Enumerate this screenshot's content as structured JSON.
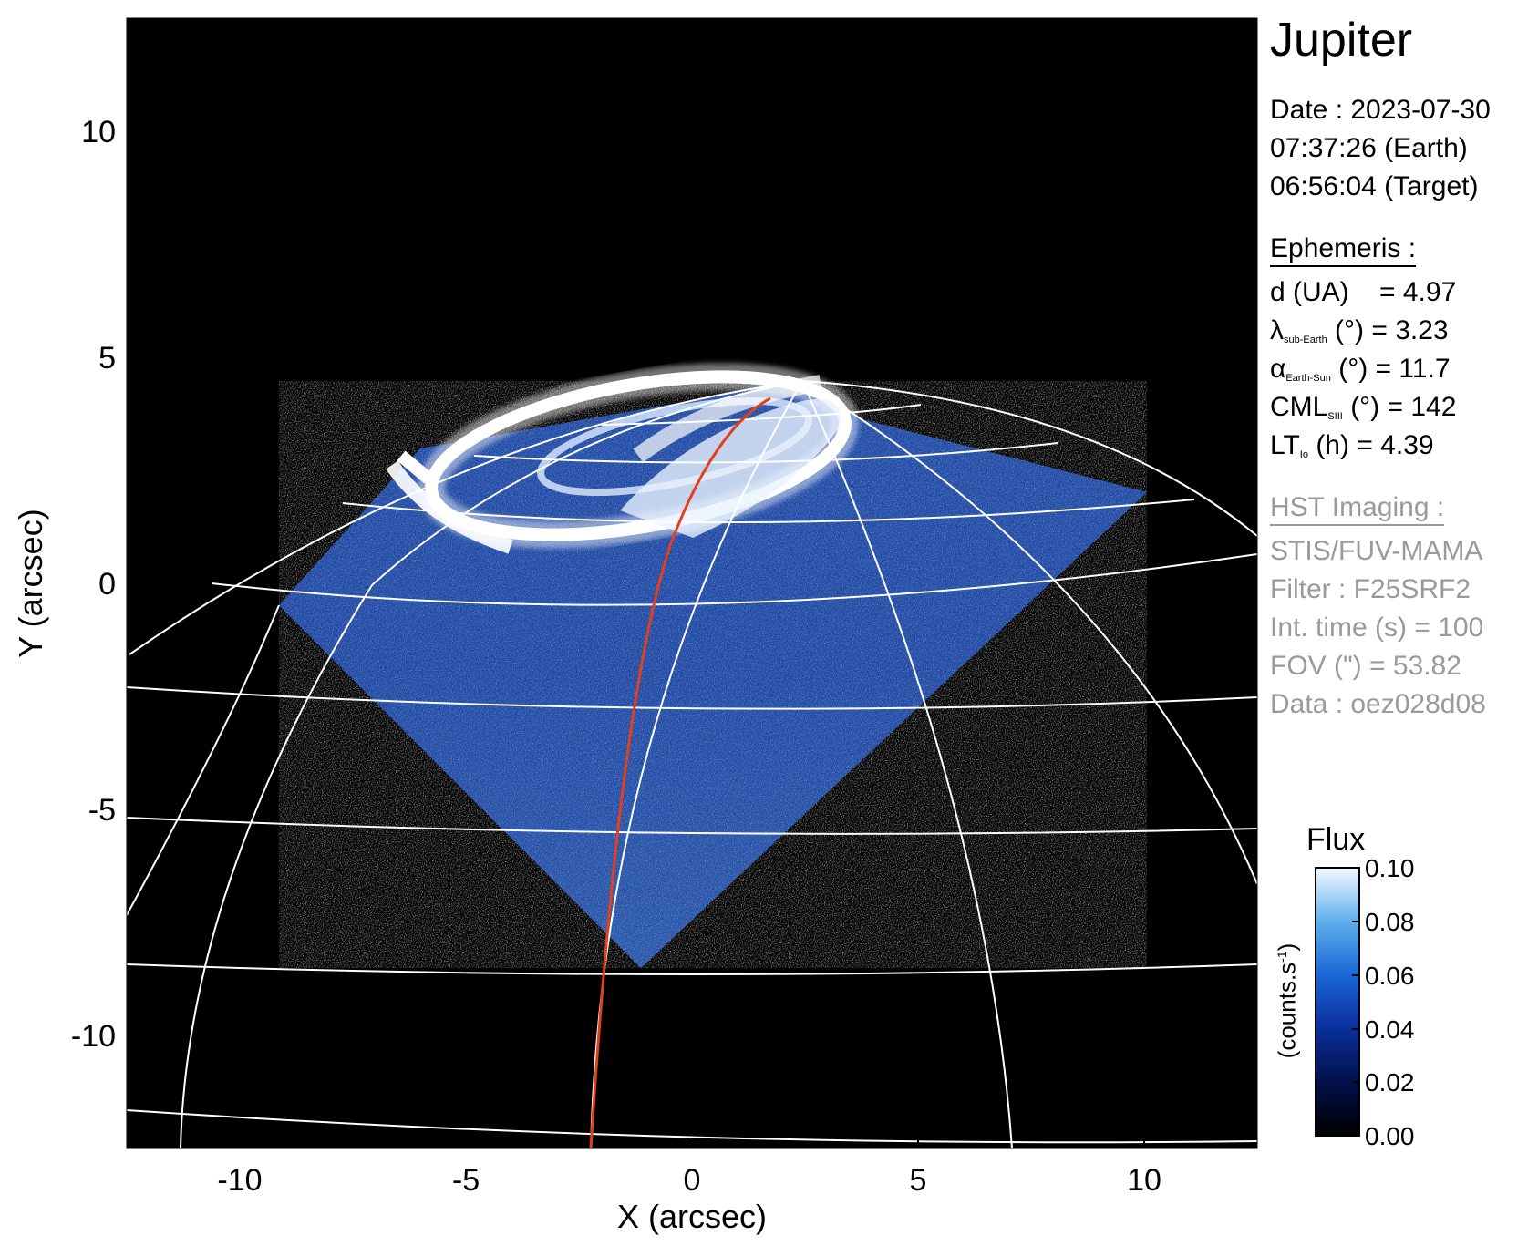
{
  "title": "Jupiter",
  "info": {
    "date": "Date : 2023-07-30",
    "time_earth": "07:37:26 (Earth)",
    "time_target": "06:56:04 (Target)"
  },
  "ephemeris": {
    "header": "Ephemeris :",
    "d": "d (UA)    = 4.97",
    "lambda_sym": "λ",
    "lambda_sub": "sub-Earth",
    "lambda_rest": " (°) = 3.23",
    "alpha_sym": "α",
    "alpha_sub": "Earth-Sun",
    "alpha_rest": " (°) = 11.7",
    "cml_sym": "CML",
    "cml_sub": "SIII",
    "cml_rest": " (°) = 142",
    "lt_sym": "LT",
    "lt_sub": "Io",
    "lt_rest": " (h) = 4.39"
  },
  "hst": {
    "header": "HST Imaging :",
    "instrument": "STIS/FUV-MAMA",
    "filter": "Filter : F25SRF2",
    "int_time": "Int. time (s) = 100",
    "fov": "FOV (\") = 53.82",
    "data": "Data : oez028d08"
  },
  "colorbar": {
    "title": "Flux",
    "unit_main": "(counts.s",
    "unit_sup": "-1",
    "unit_end": ")",
    "ticks": [
      "0.00",
      "0.02",
      "0.04",
      "0.06",
      "0.08",
      "0.10"
    ]
  },
  "axes": {
    "xlabel": "X (arcsec)",
    "ylabel": "Y (arcsec)",
    "xticks": [
      "-10",
      "-5",
      "0",
      "5",
      "10"
    ],
    "yticks": [
      "10",
      "5",
      "0",
      "-5",
      "-10"
    ],
    "range": [
      -12.5,
      12.5
    ]
  },
  "colors": {
    "background": "#000000",
    "grid": "#ffffff",
    "footprint": "#e0401a",
    "aurora_low": "#0a2a8a",
    "aurora_high": "#ffffff"
  }
}
